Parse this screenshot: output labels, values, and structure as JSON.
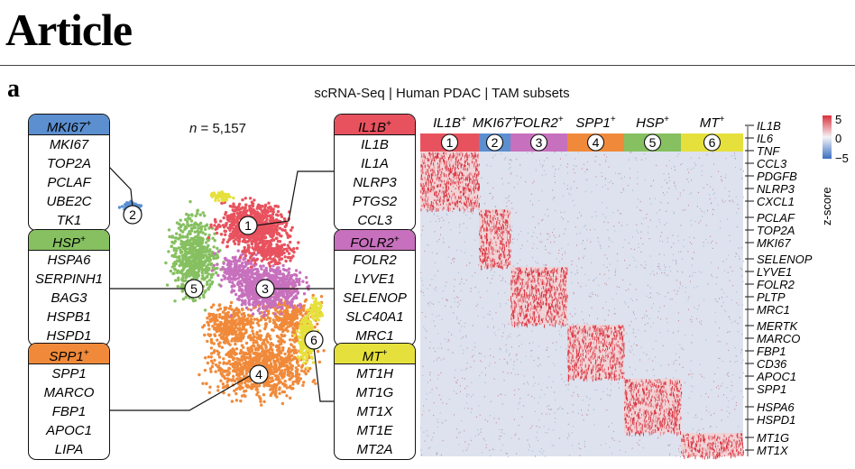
{
  "header": {
    "title": "Article"
  },
  "panel": {
    "letter": "a",
    "title": "scRNA-Seq | Human PDAC | TAM subsets",
    "n_label": "n",
    "n_value": "= 5,157"
  },
  "clusters": [
    {
      "id": "1",
      "name": "IL1B",
      "sup": "+",
      "color": "#e8525e",
      "genes": [
        "IL1B",
        "IL1A",
        "NLRP3",
        "PTGS2",
        "CCL3"
      ]
    },
    {
      "id": "2",
      "name": "MKI67",
      "sup": "+",
      "color": "#5b8fd0",
      "genes": [
        "MKI67",
        "TOP2A",
        "PCLAF",
        "UBE2C",
        "TK1"
      ]
    },
    {
      "id": "3",
      "name": "FOLR2",
      "sup": "+",
      "color": "#c770bd",
      "genes": [
        "FOLR2",
        "LYVE1",
        "SELENOP",
        "SLC40A1",
        "MRC1"
      ]
    },
    {
      "id": "4",
      "name": "SPP1",
      "sup": "+",
      "color": "#f08a3a",
      "genes": [
        "SPP1",
        "MARCO",
        "FBP1",
        "APOC1",
        "LIPA"
      ]
    },
    {
      "id": "5",
      "name": "HSP",
      "sup": "+",
      "color": "#86c060",
      "genes": [
        "HSPA6",
        "SERPINH1",
        "BAG3",
        "HSPB1",
        "HSPD1"
      ]
    },
    {
      "id": "6",
      "name": "MT",
      "sup": "+",
      "color": "#e6e03c",
      "genes": [
        "MT1H",
        "MT1G",
        "MT1X",
        "MT1E",
        "MT2A"
      ]
    }
  ],
  "heatmap": {
    "row_genes": [
      "IL1B",
      "IL6",
      "TNF",
      "CCL3",
      "PDGFB",
      "NLRP3",
      "CXCL1",
      "PCLAF",
      "TOP2A",
      "MKI67",
      "SELENOP",
      "LYVE1",
      "FOLR2",
      "PLTP",
      "MRC1",
      "MERTK",
      "MARCO",
      "FBP1",
      "CD36",
      "APOC1",
      "SPP1",
      "HSPA6",
      "HSPD1",
      "MT1G",
      "MT1X"
    ],
    "colorbar": {
      "max": "5",
      "mid": "0",
      "min": "−5",
      "label": "z-score",
      "high_color": "#d9303c",
      "low_color": "#3a6fc0"
    }
  }
}
